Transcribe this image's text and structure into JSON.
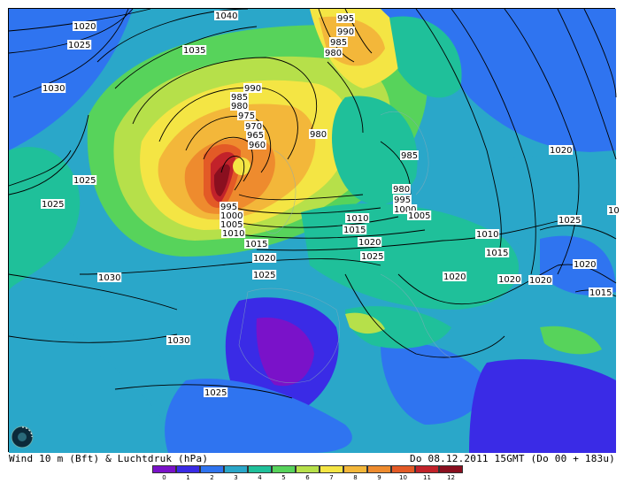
{
  "map": {
    "footer_left": "Wind 10 m (Bft) & Luchtdruk (hPa)",
    "footer_right": "Do 08.12.2011 15GMT (Do 00 + 183u)"
  },
  "legend": {
    "ticks": [
      "0",
      "1",
      "2",
      "3",
      "4",
      "5",
      "6",
      "7",
      "8",
      "9",
      "10",
      "11",
      "12"
    ],
    "colors": [
      "#7a12c9",
      "#3a2be6",
      "#2f74f0",
      "#2aa7c9",
      "#1fc09a",
      "#57d35b",
      "#b6e04a",
      "#f4e544",
      "#f3b73a",
      "#ee8b2e",
      "#e35a26",
      "#c2222a",
      "#8a0f1f"
    ]
  },
  "isobars": [
    {
      "text": "1040"
    },
    {
      "text": "1020"
    },
    {
      "text": "1025"
    },
    {
      "text": "1035"
    },
    {
      "text": "1030"
    },
    {
      "text": "1025"
    },
    {
      "text": "1025"
    },
    {
      "text": "1030"
    },
    {
      "text": "1030"
    },
    {
      "text": "1025"
    },
    {
      "text": "995"
    },
    {
      "text": "990"
    },
    {
      "text": "985"
    },
    {
      "text": "980"
    },
    {
      "text": "990"
    },
    {
      "text": "985"
    },
    {
      "text": "980"
    },
    {
      "text": "975"
    },
    {
      "text": "970"
    },
    {
      "text": "965"
    },
    {
      "text": "960"
    },
    {
      "text": "980"
    },
    {
      "text": "985"
    },
    {
      "text": "980"
    },
    {
      "text": "995"
    },
    {
      "text": "1000"
    },
    {
      "text": "1005"
    },
    {
      "text": "1010"
    },
    {
      "text": "1015"
    },
    {
      "text": "1020"
    },
    {
      "text": "1025"
    },
    {
      "text": "1010"
    },
    {
      "text": "1015"
    },
    {
      "text": "1020"
    },
    {
      "text": "1025"
    },
    {
      "text": "1020"
    },
    {
      "text": "1025"
    },
    {
      "text": "1010"
    },
    {
      "text": "1015"
    },
    {
      "text": "1020"
    },
    {
      "text": "1020"
    },
    {
      "text": "1020"
    },
    {
      "text": "1015"
    },
    {
      "text": "1020"
    },
    {
      "text": "10"
    },
    {
      "text": "1005"
    },
    {
      "text": "1000"
    },
    {
      "text": "995"
    }
  ]
}
